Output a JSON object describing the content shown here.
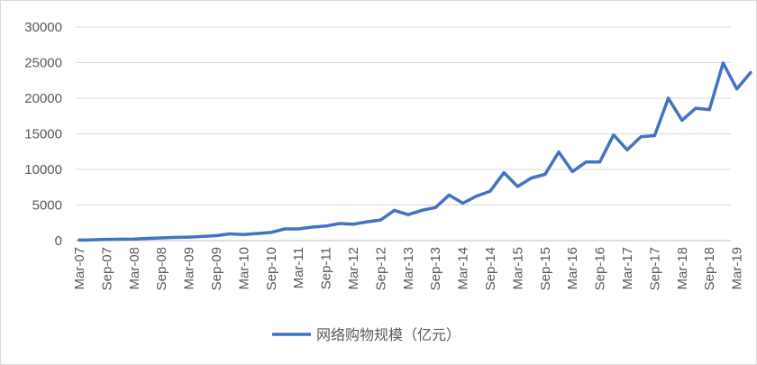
{
  "chart_data": {
    "type": "line",
    "title": "",
    "xlabel": "",
    "ylabel": "",
    "ylim": [
      0,
      30000
    ],
    "yticks": [
      "0",
      "5000",
      "10000",
      "15000",
      "20000",
      "25000",
      "30000"
    ],
    "xtick_labels": [
      "Mar-07",
      "Sep-07",
      "Mar-08",
      "Sep-08",
      "Mar-09",
      "Sep-09",
      "Mar-10",
      "Sep-10",
      "Mar-11",
      "Sep-11",
      "Mar-12",
      "Sep-12",
      "Mar-13",
      "Sep-13",
      "Mar-14",
      "Sep-14",
      "Mar-15",
      "Sep-15",
      "Mar-16",
      "Sep-16",
      "Mar-17",
      "Sep-17",
      "Mar-18",
      "Sep-18",
      "Mar-19"
    ],
    "grid": true,
    "legend_position": "bottom",
    "series": [
      {
        "name": "网络购物规模（亿元）",
        "color": "#4472c4",
        "x": [
          "Mar-07",
          "Jun-07",
          "Sep-07",
          "Dec-07",
          "Mar-08",
          "Jun-08",
          "Sep-08",
          "Dec-08",
          "Mar-09",
          "Jun-09",
          "Sep-09",
          "Dec-09",
          "Mar-10",
          "Jun-10",
          "Sep-10",
          "Dec-10",
          "Mar-11",
          "Jun-11",
          "Sep-11",
          "Dec-11",
          "Mar-12",
          "Jun-12",
          "Sep-12",
          "Dec-12",
          "Mar-13",
          "Jun-13",
          "Sep-13",
          "Dec-13",
          "Mar-14",
          "Jun-14",
          "Sep-14",
          "Dec-14",
          "Mar-15",
          "Jun-15",
          "Sep-15",
          "Dec-15",
          "Mar-16",
          "Jun-16",
          "Sep-16",
          "Dec-16",
          "Mar-17",
          "Jun-17",
          "Sep-17",
          "Dec-17",
          "Mar-18",
          "Jun-18",
          "Sep-18",
          "Dec-18",
          "Mar-19",
          "Jun-19"
        ],
        "values": [
          80,
          110,
          180,
          200,
          230,
          320,
          380,
          460,
          490,
          580,
          700,
          950,
          850,
          1000,
          1150,
          1650,
          1650,
          1900,
          2050,
          2400,
          2300,
          2650,
          2900,
          4250,
          3650,
          4250,
          4650,
          6400,
          5250,
          6250,
          6950,
          9550,
          7600,
          8800,
          9300,
          12450,
          9700,
          11050,
          11050,
          14850,
          12750,
          14600,
          14750,
          20000,
          16900,
          18600,
          18400,
          24950,
          21300,
          23600
        ]
      }
    ]
  }
}
